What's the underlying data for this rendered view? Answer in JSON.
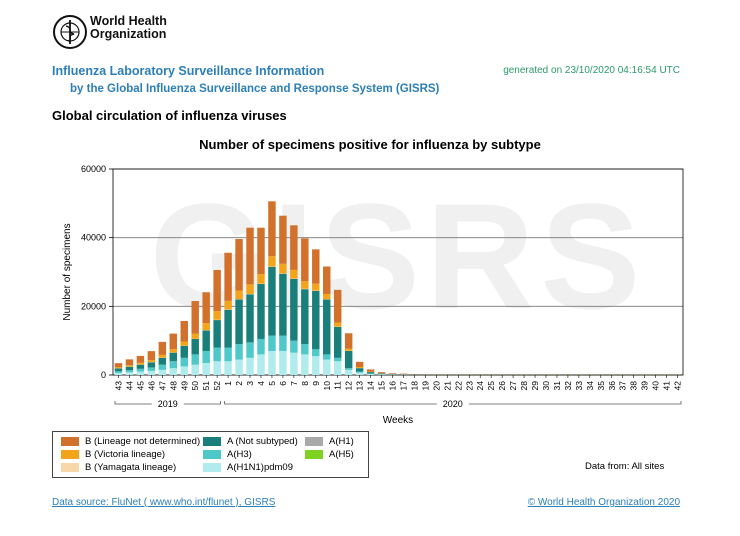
{
  "header": {
    "org_line1": "World Health",
    "org_line2": "Organization",
    "title": "Influenza Laboratory Surveillance Information",
    "subtitle": "by the Global Influenza Surveillance and Response System (GISRS)",
    "generated": "generated on 23/10/2020 04:16:54 UTC",
    "section_title": "Global circulation of influenza viruses"
  },
  "legend_items": [
    {
      "label": "B (Lineage not determined)",
      "color": "#d2712b"
    },
    {
      "label": "B (Victoria lineage)",
      "color": "#f2a51a"
    },
    {
      "label": "B (Yamagata lineage)",
      "color": "#f8d7a8"
    },
    {
      "label": "A (Not subtyped)",
      "color": "#1a7f7a"
    },
    {
      "label": "A(H3)",
      "color": "#4ec8c8"
    },
    {
      "label": "A(H1N1)pdm09",
      "color": "#b0ecee"
    },
    {
      "label": "A(H1)",
      "color": "#a9a9a9"
    },
    {
      "label": "A(H5)",
      "color": "#7fd320"
    }
  ],
  "data_from": "Data from: All sites",
  "footer": {
    "source": "Data source: FluNet ( www.who.int/flunet ), GISRS",
    "copyright": "© World Health Organization 2020"
  },
  "watermark": "GISRS",
  "chart_data": {
    "type": "bar",
    "stacked": true,
    "title": "Number of specimens positive for influenza by subtype",
    "xlabel": "Weeks",
    "ylabel": "Number of specimens",
    "ylim": [
      0,
      60000
    ],
    "yticks": [
      0,
      20000,
      40000,
      60000
    ],
    "grid": true,
    "legend_position": "bottom-left",
    "categories": [
      "43",
      "44",
      "45",
      "46",
      "47",
      "48",
      "49",
      "50",
      "51",
      "52",
      "1",
      "2",
      "3",
      "4",
      "5",
      "6",
      "7",
      "8",
      "9",
      "10",
      "11",
      "12",
      "13",
      "14",
      "15",
      "16",
      "17",
      "18",
      "19",
      "20",
      "21",
      "22",
      "23",
      "24",
      "25",
      "26",
      "27",
      "28",
      "29",
      "30",
      "31",
      "32",
      "33",
      "34",
      "35",
      "36",
      "37",
      "38",
      "39",
      "40",
      "41",
      "42"
    ],
    "year_groups": [
      {
        "label": "2019",
        "first_index": 0,
        "last_index": 9
      },
      {
        "label": "2020",
        "first_index": 10,
        "last_index": 51
      }
    ],
    "series": [
      {
        "name": "A(H1N1)pdm09",
        "color": "#b0ecee",
        "values": [
          600,
          800,
          1000,
          1200,
          1500,
          2000,
          2500,
          3000,
          3500,
          4000,
          4000,
          4500,
          5000,
          6000,
          7000,
          7000,
          6500,
          6000,
          5500,
          4500,
          4000,
          1500,
          700,
          300,
          150,
          100,
          80,
          60,
          50,
          50,
          50,
          50,
          50,
          50,
          50,
          50,
          50,
          50,
          50,
          50,
          50,
          50,
          50,
          50,
          50,
          50,
          50,
          50,
          50,
          50,
          50,
          50
        ]
      },
      {
        "name": "A(H3)",
        "color": "#4ec8c8",
        "values": [
          500,
          600,
          800,
          1000,
          1500,
          2000,
          2500,
          3000,
          3500,
          4000,
          4000,
          4500,
          4500,
          4500,
          4500,
          4500,
          3500,
          3000,
          2000,
          1500,
          1000,
          500,
          300,
          150,
          80,
          50,
          40,
          30,
          30,
          30,
          30,
          30,
          30,
          30,
          30,
          30,
          30,
          30,
          30,
          30,
          30,
          30,
          30,
          30,
          30,
          30,
          30,
          30,
          30,
          30,
          30,
          30
        ]
      },
      {
        "name": "A (Not subtyped)",
        "color": "#1a7f7a",
        "values": [
          800,
          1000,
          1200,
          1500,
          2000,
          2500,
          3500,
          4500,
          6000,
          8000,
          11000,
          13000,
          14000,
          16000,
          20000,
          18000,
          18000,
          16000,
          17000,
          16000,
          9000,
          5000,
          1000,
          400,
          200,
          100,
          80,
          60,
          50,
          50,
          50,
          50,
          50,
          50,
          50,
          50,
          50,
          50,
          50,
          50,
          50,
          50,
          50,
          50,
          50,
          50,
          50,
          50,
          50,
          50,
          50,
          50
        ]
      },
      {
        "name": "A(H1)",
        "color": "#a9a9a9",
        "values": [
          0,
          0,
          0,
          0,
          0,
          0,
          0,
          0,
          0,
          0,
          0,
          0,
          0,
          0,
          0,
          0,
          0,
          0,
          0,
          0,
          0,
          0,
          0,
          0,
          0,
          0,
          0,
          0,
          0,
          0,
          0,
          0,
          0,
          0,
          0,
          0,
          0,
          0,
          0,
          0,
          0,
          0,
          0,
          0,
          0,
          0,
          0,
          0,
          0,
          0,
          0,
          0
        ]
      },
      {
        "name": "A(H5)",
        "color": "#7fd320",
        "values": [
          0,
          0,
          0,
          0,
          0,
          0,
          0,
          0,
          0,
          0,
          0,
          0,
          0,
          0,
          0,
          0,
          0,
          0,
          0,
          0,
          0,
          0,
          0,
          0,
          0,
          0,
          0,
          0,
          0,
          0,
          0,
          0,
          0,
          0,
          0,
          0,
          0,
          0,
          0,
          0,
          0,
          0,
          0,
          0,
          0,
          0,
          0,
          0,
          0,
          0,
          0,
          0
        ]
      },
      {
        "name": "B (Yamagata lineage)",
        "color": "#f8d7a8",
        "values": [
          50,
          50,
          50,
          50,
          50,
          50,
          50,
          50,
          100,
          100,
          100,
          100,
          100,
          100,
          100,
          100,
          100,
          100,
          100,
          100,
          100,
          50,
          30,
          20,
          10,
          10,
          10,
          10,
          10,
          10,
          10,
          10,
          10,
          10,
          10,
          10,
          10,
          10,
          10,
          10,
          10,
          10,
          10,
          10,
          10,
          10,
          10,
          10,
          10,
          10,
          10,
          10
        ]
      },
      {
        "name": "B (Victoria lineage)",
        "color": "#f2a51a",
        "values": [
          300,
          400,
          500,
          600,
          800,
          1000,
          1200,
          1500,
          2000,
          2500,
          2500,
          2500,
          2800,
          2800,
          3000,
          2800,
          2500,
          2200,
          2000,
          1500,
          1200,
          600,
          300,
          150,
          80,
          50,
          40,
          30,
          30,
          30,
          30,
          30,
          30,
          30,
          30,
          30,
          30,
          30,
          30,
          30,
          30,
          30,
          30,
          30,
          30,
          30,
          30,
          30,
          30,
          30,
          30,
          30
        ]
      },
      {
        "name": "B (Lineage not determined)",
        "color": "#d2712b",
        "values": [
          1200,
          1700,
          2000,
          2600,
          3800,
          4500,
          6000,
          9500,
          9000,
          12000,
          14000,
          15000,
          16500,
          13500,
          16000,
          14000,
          13000,
          12500,
          10000,
          8000,
          9500,
          4500,
          1500,
          600,
          300,
          200,
          150,
          100,
          80,
          80,
          80,
          80,
          80,
          80,
          80,
          80,
          80,
          80,
          80,
          80,
          80,
          80,
          80,
          80,
          80,
          80,
          80,
          80,
          80,
          80,
          80,
          80
        ]
      }
    ]
  }
}
